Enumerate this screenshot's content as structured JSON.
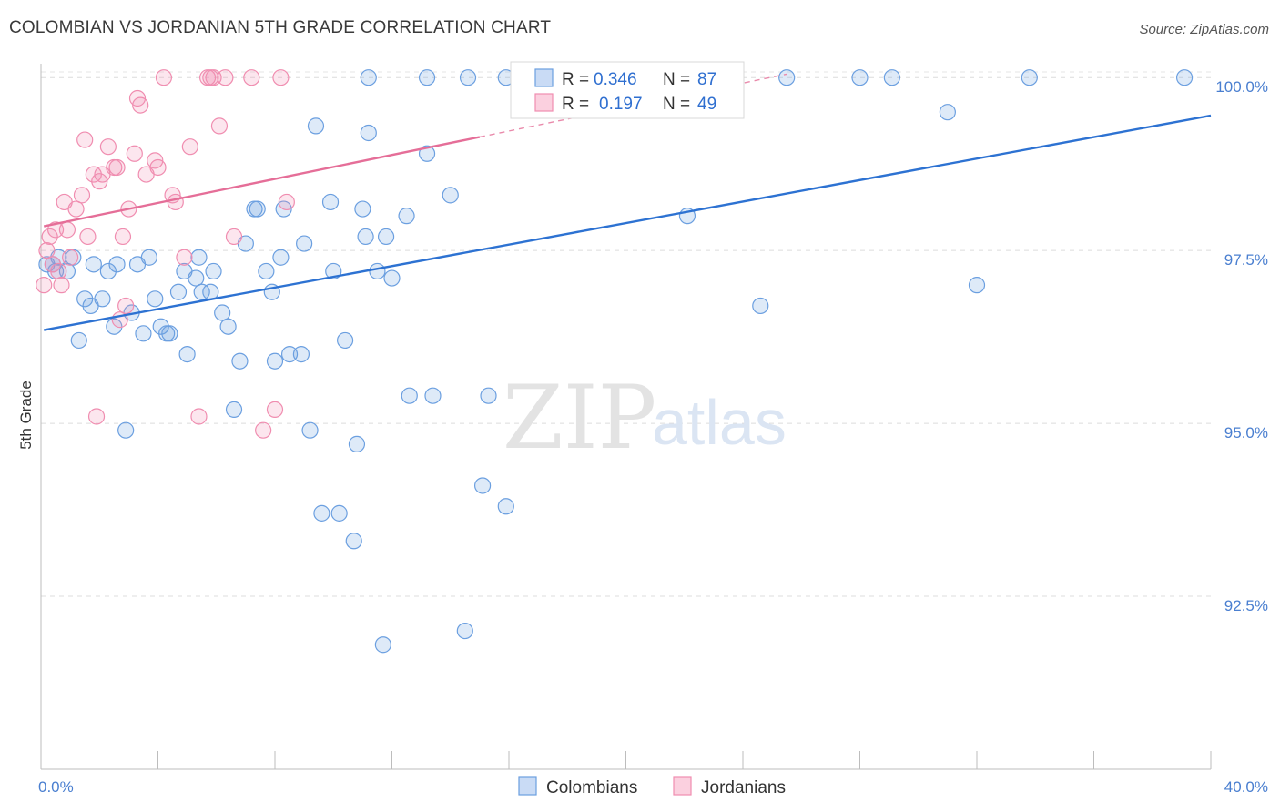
{
  "title": "COLOMBIAN VS JORDANIAN 5TH GRADE CORRELATION CHART",
  "source": "Source: ZipAtlas.com",
  "watermark": {
    "part1": "ZIP",
    "part2": "atlas"
  },
  "legend_top": {
    "r_label": "R =",
    "n_label": "N =",
    "rows": [
      {
        "r": "0.346",
        "n": "87",
        "color": "#6b9fe0"
      },
      {
        "r": "0.197",
        "n": "49",
        "color": "#f08db0"
      }
    ]
  },
  "legend_bottom": [
    {
      "label": "Colombians",
      "color": "#6b9fe0"
    },
    {
      "label": "Jordanians",
      "color": "#f08db0"
    }
  ],
  "chart_data": {
    "type": "scatter",
    "ylabel": "5th Grade",
    "xlabel": "",
    "xlim": [
      0,
      40
    ],
    "ylim": [
      90.0,
      100.2
    ],
    "x_tick_labels": [
      {
        "value": 0,
        "label": "0.0%"
      },
      {
        "value": 40,
        "label": "40.0%"
      }
    ],
    "y_tick_labels": [
      {
        "value": 100.0,
        "label": "100.0%"
      },
      {
        "value": 97.5,
        "label": "97.5%"
      },
      {
        "value": 95.0,
        "label": "95.0%"
      },
      {
        "value": 92.5,
        "label": "92.5%"
      }
    ],
    "grid": true,
    "series": [
      {
        "name": "Colombians",
        "color": "#6b9fe0",
        "trendline": {
          "x": [
            0.1,
            40.0
          ],
          "y": [
            96.35,
            99.45
          ]
        },
        "points": [
          [
            0.2,
            97.3
          ],
          [
            0.4,
            97.3
          ],
          [
            0.5,
            97.2
          ],
          [
            0.6,
            97.4
          ],
          [
            0.9,
            97.2
          ],
          [
            1.1,
            97.4
          ],
          [
            1.3,
            96.2
          ],
          [
            1.5,
            96.8
          ],
          [
            1.7,
            96.7
          ],
          [
            1.8,
            97.3
          ],
          [
            2.1,
            96.8
          ],
          [
            2.3,
            97.2
          ],
          [
            2.5,
            96.4
          ],
          [
            2.6,
            97.3
          ],
          [
            2.9,
            94.9
          ],
          [
            3.1,
            96.6
          ],
          [
            3.3,
            97.3
          ],
          [
            3.5,
            96.3
          ],
          [
            3.7,
            97.4
          ],
          [
            3.9,
            96.8
          ],
          [
            4.1,
            96.4
          ],
          [
            4.3,
            96.3
          ],
          [
            4.4,
            96.3
          ],
          [
            4.7,
            96.9
          ],
          [
            4.9,
            97.2
          ],
          [
            5.0,
            96.0
          ],
          [
            5.3,
            97.1
          ],
          [
            5.4,
            97.4
          ],
          [
            5.5,
            96.9
          ],
          [
            5.8,
            96.9
          ],
          [
            5.9,
            97.2
          ],
          [
            6.2,
            96.6
          ],
          [
            6.4,
            96.4
          ],
          [
            6.6,
            95.2
          ],
          [
            6.8,
            95.9
          ],
          [
            7.0,
            97.6
          ],
          [
            7.3,
            98.1
          ],
          [
            7.4,
            98.1
          ],
          [
            7.7,
            97.2
          ],
          [
            7.9,
            96.9
          ],
          [
            8.0,
            95.9
          ],
          [
            8.2,
            97.4
          ],
          [
            8.3,
            98.1
          ],
          [
            8.5,
            96.0
          ],
          [
            8.9,
            96.0
          ],
          [
            9.0,
            97.6
          ],
          [
            9.2,
            94.9
          ],
          [
            9.4,
            99.3
          ],
          [
            9.6,
            93.7
          ],
          [
            9.9,
            98.2
          ],
          [
            10.0,
            97.2
          ],
          [
            10.2,
            93.7
          ],
          [
            10.4,
            96.2
          ],
          [
            10.7,
            93.3
          ],
          [
            10.8,
            94.7
          ],
          [
            11.0,
            98.1
          ],
          [
            11.1,
            97.7
          ],
          [
            11.2,
            99.2
          ],
          [
            11.5,
            97.2
          ],
          [
            11.7,
            91.8
          ],
          [
            11.8,
            97.7
          ],
          [
            12.0,
            97.1
          ],
          [
            12.5,
            98.0
          ],
          [
            12.6,
            95.4
          ],
          [
            13.2,
            98.9
          ],
          [
            13.4,
            95.4
          ],
          [
            14.0,
            98.3
          ],
          [
            14.5,
            92.0
          ],
          [
            15.1,
            94.1
          ],
          [
            15.3,
            95.4
          ],
          [
            15.9,
            93.8
          ],
          [
            11.2,
            100.0
          ],
          [
            13.2,
            100.0
          ],
          [
            14.6,
            100.0
          ],
          [
            15.9,
            100.0
          ],
          [
            17.2,
            100.0
          ],
          [
            18.3,
            100.0
          ],
          [
            19.6,
            100.0
          ],
          [
            21.3,
            100.0
          ],
          [
            22.1,
            98.0
          ],
          [
            24.6,
            96.7
          ],
          [
            25.5,
            100.0
          ],
          [
            28.0,
            100.0
          ],
          [
            29.1,
            100.0
          ],
          [
            31.0,
            99.5
          ],
          [
            32.0,
            97.0
          ],
          [
            33.8,
            100.0
          ],
          [
            39.1,
            100.0
          ]
        ]
      },
      {
        "name": "Jordanians",
        "color": "#f08db0",
        "trendline": {
          "x": [
            0.1,
            25.5
          ],
          "y": [
            97.85,
            100.05
          ]
        },
        "points": [
          [
            0.1,
            97.0
          ],
          [
            0.2,
            97.5
          ],
          [
            0.3,
            97.7
          ],
          [
            0.4,
            97.3
          ],
          [
            0.5,
            97.8
          ],
          [
            0.6,
            97.2
          ],
          [
            0.7,
            97.0
          ],
          [
            0.8,
            98.2
          ],
          [
            0.9,
            97.8
          ],
          [
            1.0,
            97.4
          ],
          [
            1.2,
            98.1
          ],
          [
            1.4,
            98.3
          ],
          [
            1.5,
            99.1
          ],
          [
            1.6,
            97.7
          ],
          [
            1.8,
            98.6
          ],
          [
            1.9,
            95.1
          ],
          [
            2.0,
            98.5
          ],
          [
            2.1,
            98.6
          ],
          [
            2.3,
            99.0
          ],
          [
            2.5,
            98.7
          ],
          [
            2.6,
            98.7
          ],
          [
            2.7,
            96.5
          ],
          [
            2.8,
            97.7
          ],
          [
            2.9,
            96.7
          ],
          [
            3.0,
            98.1
          ],
          [
            3.2,
            98.9
          ],
          [
            3.3,
            99.7
          ],
          [
            3.4,
            99.6
          ],
          [
            3.6,
            98.6
          ],
          [
            3.9,
            98.8
          ],
          [
            4.0,
            98.7
          ],
          [
            4.2,
            100.0
          ],
          [
            4.5,
            98.3
          ],
          [
            4.6,
            98.2
          ],
          [
            4.9,
            97.4
          ],
          [
            5.1,
            99.0
          ],
          [
            5.4,
            95.1
          ],
          [
            5.7,
            100.0
          ],
          [
            5.8,
            100.0
          ],
          [
            5.9,
            100.0
          ],
          [
            6.1,
            99.3
          ],
          [
            6.3,
            100.0
          ],
          [
            6.6,
            97.7
          ],
          [
            7.2,
            100.0
          ],
          [
            7.6,
            94.9
          ],
          [
            8.0,
            95.2
          ],
          [
            8.4,
            98.2
          ],
          [
            8.2,
            100.0
          ],
          [
            19.0,
            100.0
          ]
        ]
      }
    ]
  }
}
